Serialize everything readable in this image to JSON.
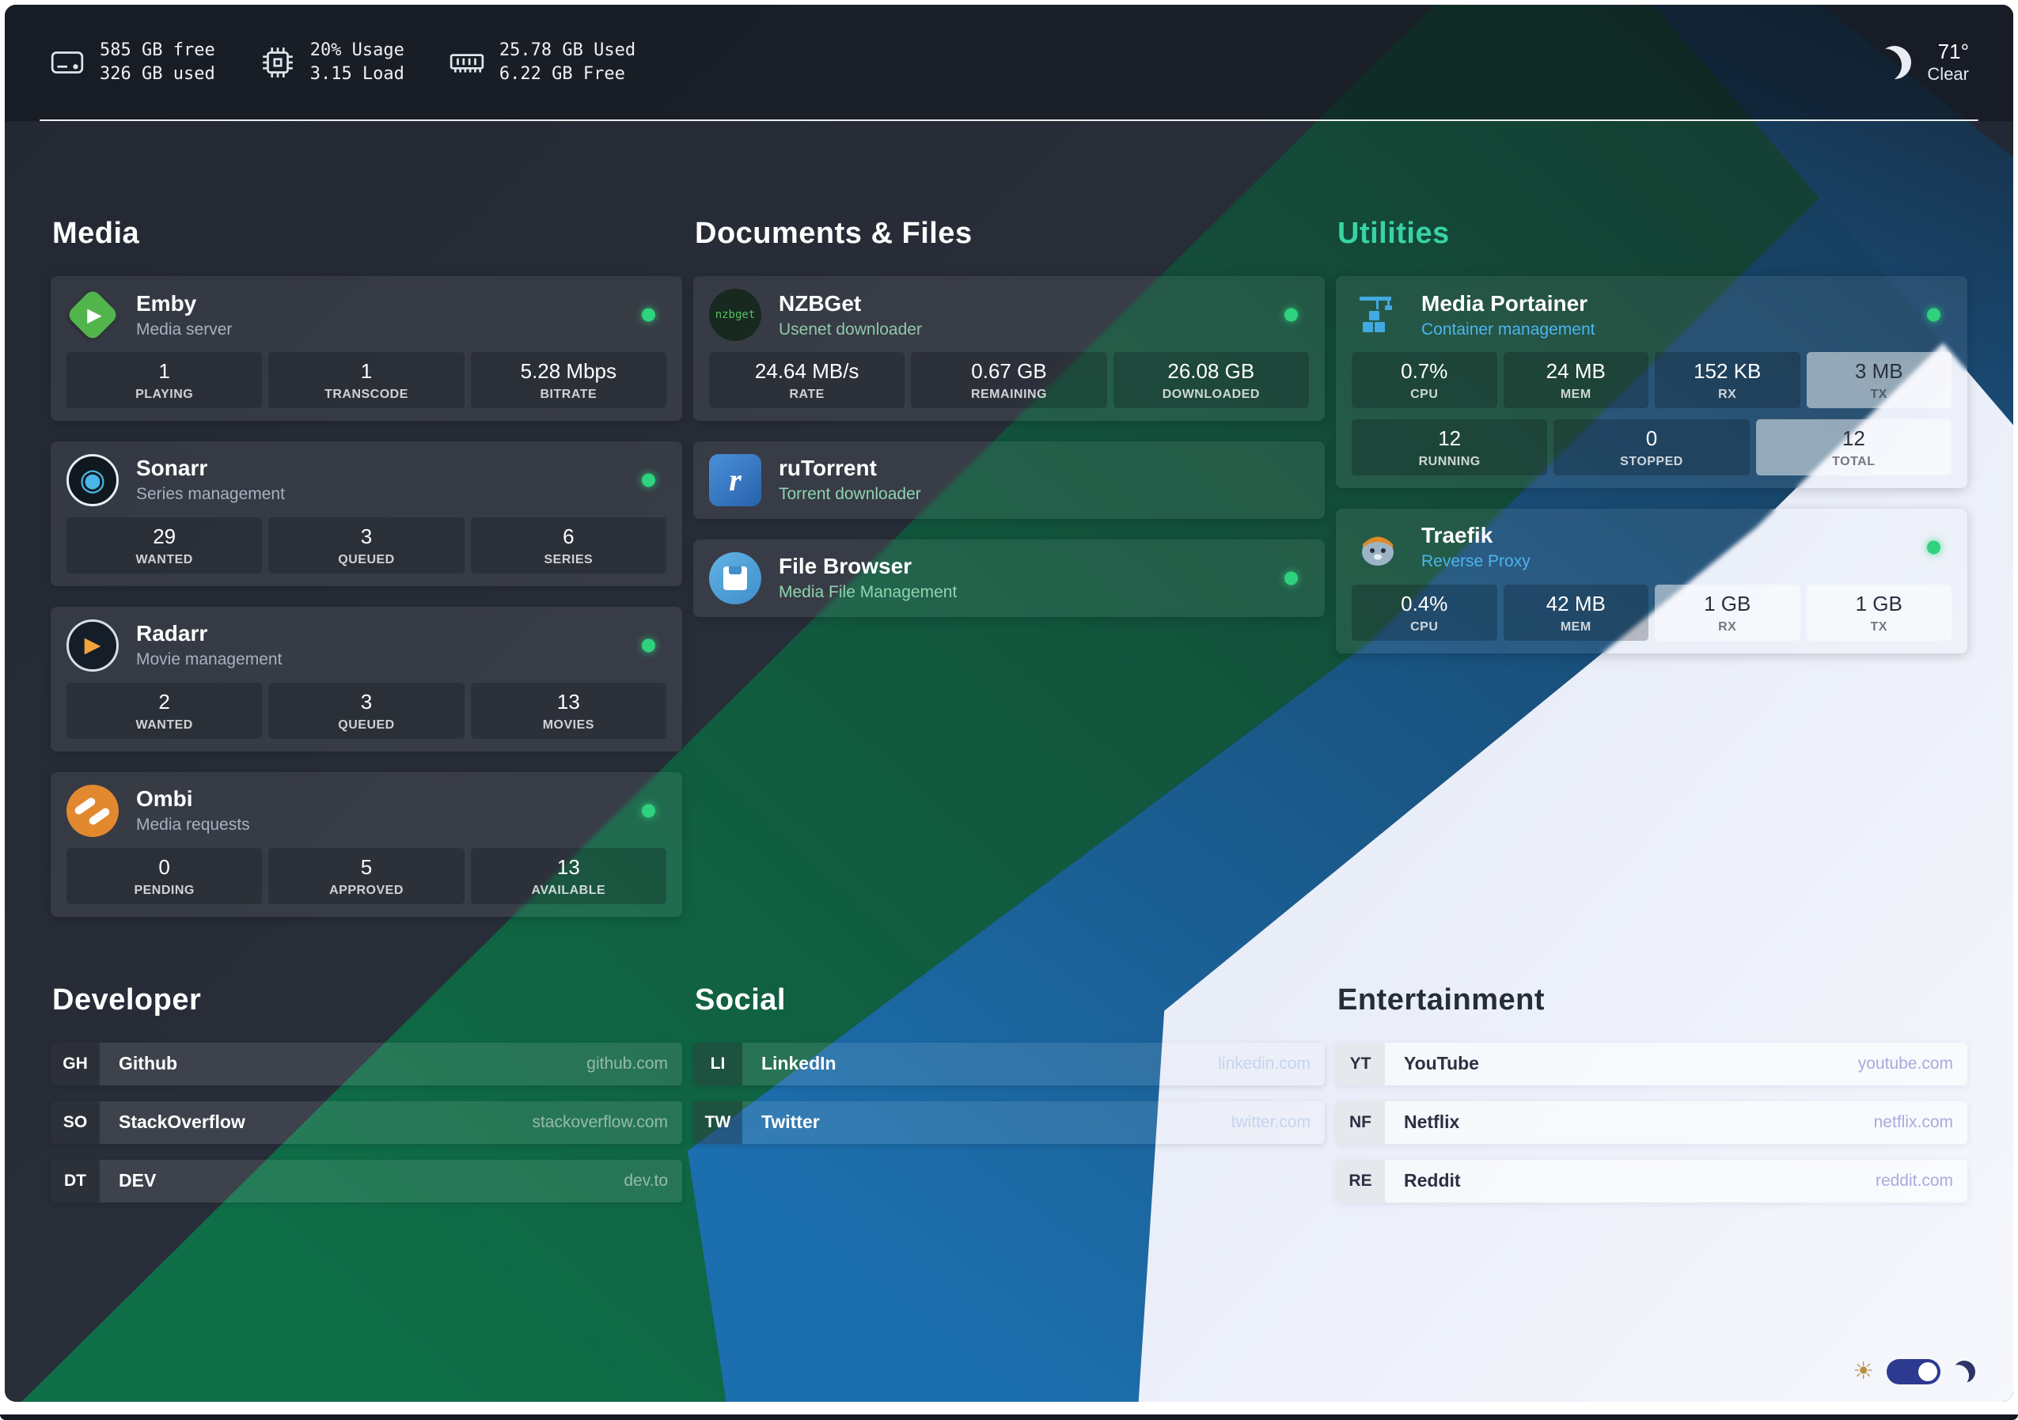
{
  "topbar": {
    "disk": {
      "icon": "hard-drive-icon",
      "line1": "585 GB free",
      "line2": "326 GB used"
    },
    "cpu": {
      "icon": "cpu-icon",
      "line1": "20% Usage",
      "line2": "3.15 Load"
    },
    "ram": {
      "icon": "memory-icon",
      "line1": "25.78 GB Used",
      "line2": "6.22 GB Free"
    },
    "weather": {
      "icon": "moon-icon",
      "temp": "71°",
      "condition": "Clear"
    }
  },
  "app_sections": [
    {
      "id": "media",
      "title": "Media",
      "title_color": "#ffffff",
      "cards": [
        {
          "app": "emby",
          "icon": "emby-icon",
          "title": "Emby",
          "subtitle": "Media server",
          "subtitle_color": "#a6b2c0",
          "status": "online",
          "stats_rows": [
            [
              {
                "value": "1",
                "label": "PLAYING"
              },
              {
                "value": "1",
                "label": "TRANSCODE"
              },
              {
                "value": "5.28 Mbps",
                "label": "BITRATE"
              }
            ]
          ]
        },
        {
          "app": "sonarr",
          "icon": "sonarr-icon",
          "title": "Sonarr",
          "subtitle": "Series management",
          "subtitle_color": "#a6b2c0",
          "status": "online",
          "stats_rows": [
            [
              {
                "value": "29",
                "label": "WANTED"
              },
              {
                "value": "3",
                "label": "QUEUED"
              },
              {
                "value": "6",
                "label": "SERIES"
              }
            ]
          ]
        },
        {
          "app": "radarr",
          "icon": "radarr-icon",
          "title": "Radarr",
          "subtitle": "Movie management",
          "subtitle_color": "#a6b2c0",
          "status": "online",
          "stats_rows": [
            [
              {
                "value": "2",
                "label": "WANTED"
              },
              {
                "value": "3",
                "label": "QUEUED"
              },
              {
                "value": "13",
                "label": "MOVIES"
              }
            ]
          ]
        },
        {
          "app": "ombi",
          "icon": "ombi-icon",
          "title": "Ombi",
          "subtitle": "Media requests",
          "subtitle_color": "#a6b2c0",
          "status": "online",
          "stats_rows": [
            [
              {
                "value": "0",
                "label": "PENDING"
              },
              {
                "value": "5",
                "label": "APPROVED"
              },
              {
                "value": "13",
                "label": "AVAILABLE"
              }
            ]
          ]
        }
      ]
    },
    {
      "id": "documents",
      "title": "Documents & Files",
      "title_color": "#ffffff",
      "cards": [
        {
          "app": "nzbget",
          "icon": "nzbget-icon",
          "title": "NZBGet",
          "subtitle": "Usenet downloader",
          "subtitle_color": "#8fc8ab",
          "status": "online",
          "stats_rows": [
            [
              {
                "value": "24.64 MB/s",
                "label": "RATE"
              },
              {
                "value": "0.67 GB",
                "label": "REMAINING"
              },
              {
                "value": "26.08 GB",
                "label": "DOWNLOADED"
              }
            ]
          ]
        },
        {
          "app": "rutorrent",
          "icon": "rutorrent-icon",
          "title": "ruTorrent",
          "subtitle": "Torrent downloader",
          "subtitle_color": "#8fd4ae",
          "status": null,
          "stats_rows": []
        },
        {
          "app": "filebrowser",
          "icon": "filebrowser-icon",
          "title": "File Browser",
          "subtitle": "Media File Management",
          "subtitle_color": "#8fd4ae",
          "status": "online",
          "stats_rows": []
        }
      ]
    },
    {
      "id": "utilities",
      "title": "Utilities",
      "title_color": "#38d3a5",
      "cards": [
        {
          "app": "portainer",
          "icon": "portainer-icon",
          "title": "Media Portainer",
          "subtitle": "Container management",
          "subtitle_color": "#4db4ee",
          "status": "online",
          "stats_rows": [
            [
              {
                "value": "0.7%",
                "label": "CPU"
              },
              {
                "value": "24 MB",
                "label": "MEM"
              },
              {
                "value": "152 KB",
                "label": "RX"
              },
              {
                "value": "3 MB",
                "label": "TX",
                "light": true
              }
            ],
            [
              {
                "value": "12",
                "label": "RUNNING"
              },
              {
                "value": "0",
                "label": "STOPPED"
              },
              {
                "value": "12",
                "label": "TOTAL",
                "light": true
              }
            ]
          ]
        },
        {
          "app": "traefik",
          "icon": "traefik-icon",
          "title": "Traefik",
          "subtitle": "Reverse Proxy",
          "subtitle_color": "#4db4ee",
          "status": "online",
          "stats_rows": [
            [
              {
                "value": "0.4%",
                "label": "CPU"
              },
              {
                "value": "42 MB",
                "label": "MEM"
              },
              {
                "value": "1 GB",
                "label": "RX",
                "light": true
              },
              {
                "value": "1 GB",
                "label": "TX",
                "light": true
              }
            ]
          ]
        }
      ]
    }
  ],
  "bookmark_sections": [
    {
      "id": "developer",
      "title": "Developer",
      "title_color": "#ffffff",
      "theme": "dark",
      "links": [
        {
          "abbr": "GH",
          "name": "Github",
          "url": "github.com"
        },
        {
          "abbr": "SO",
          "name": "StackOverflow",
          "url": "stackoverflow.com"
        },
        {
          "abbr": "DT",
          "name": "DEV",
          "url": "dev.to"
        }
      ]
    },
    {
      "id": "social",
      "title": "Social",
      "title_color": "#ffffff",
      "theme": "dark",
      "links": [
        {
          "abbr": "LI",
          "name": "LinkedIn",
          "url": "linkedin.com"
        },
        {
          "abbr": "TW",
          "name": "Twitter",
          "url": "twitter.com"
        }
      ]
    },
    {
      "id": "entertainment",
      "title": "Entertainment",
      "title_color": "#262c38",
      "theme": "light",
      "links": [
        {
          "abbr": "YT",
          "name": "YouTube",
          "url": "youtube.com"
        },
        {
          "abbr": "NF",
          "name": "Netflix",
          "url": "netflix.com"
        },
        {
          "abbr": "RE",
          "name": "Reddit",
          "url": "reddit.com"
        }
      ]
    }
  ],
  "theme_toggle": {
    "state": "on",
    "left_icon": "sun-icon",
    "right_icon": "dark-moon-icon"
  },
  "colors": {
    "status_dot": "#2fd27d",
    "stripe_navy": "#272c37",
    "stripe_green": "#0e6f48",
    "stripe_blue": "#1c6fae",
    "stripe_white": "#f2f4fb",
    "toggle_pill": "#2d3a8f"
  }
}
